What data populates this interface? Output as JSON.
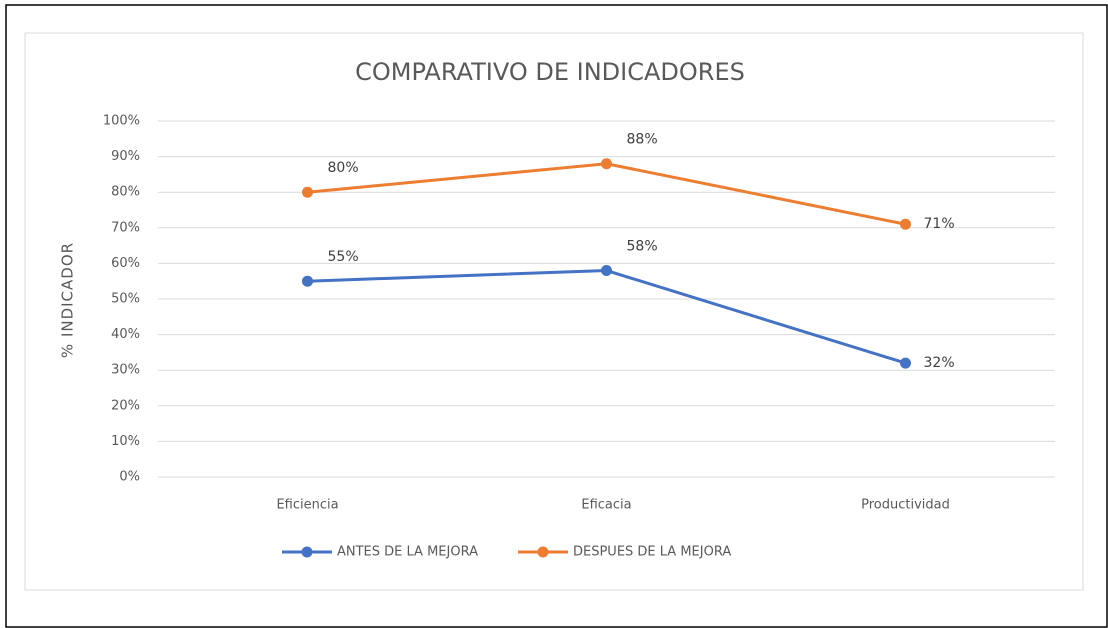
{
  "chart_data": {
    "type": "line",
    "title": "COMPARATIVO DE INDICADORES",
    "y_label": "% INDICADOR",
    "categories": [
      "Eficiencia",
      "Eficacia",
      "Productividad"
    ],
    "series": [
      {
        "name": "ANTES DE LA MEJORA",
        "color": "#4472c4",
        "values": [
          55,
          58,
          32
        ],
        "value_labels": [
          "55%",
          "58%",
          "32%"
        ]
      },
      {
        "name": "DESPUES DE LA MEJORA",
        "color": "#ed7d31",
        "values": [
          80,
          88,
          71
        ],
        "value_labels": [
          "80%",
          "88%",
          "71%"
        ]
      }
    ],
    "ylim": [
      0,
      100
    ],
    "yticks": [
      {
        "value": 0,
        "label": "0%"
      },
      {
        "value": 10,
        "label": "10%"
      },
      {
        "value": 20,
        "label": "20%"
      },
      {
        "value": 30,
        "label": "30%"
      },
      {
        "value": 40,
        "label": "40%"
      },
      {
        "value": 50,
        "label": "50%"
      },
      {
        "value": 60,
        "label": "60%"
      },
      {
        "value": 70,
        "label": "70%"
      },
      {
        "value": 80,
        "label": "80%"
      },
      {
        "value": 90,
        "label": "90%"
      },
      {
        "value": 100,
        "label": "100%"
      }
    ],
    "grid": true,
    "legend": "bottom"
  }
}
